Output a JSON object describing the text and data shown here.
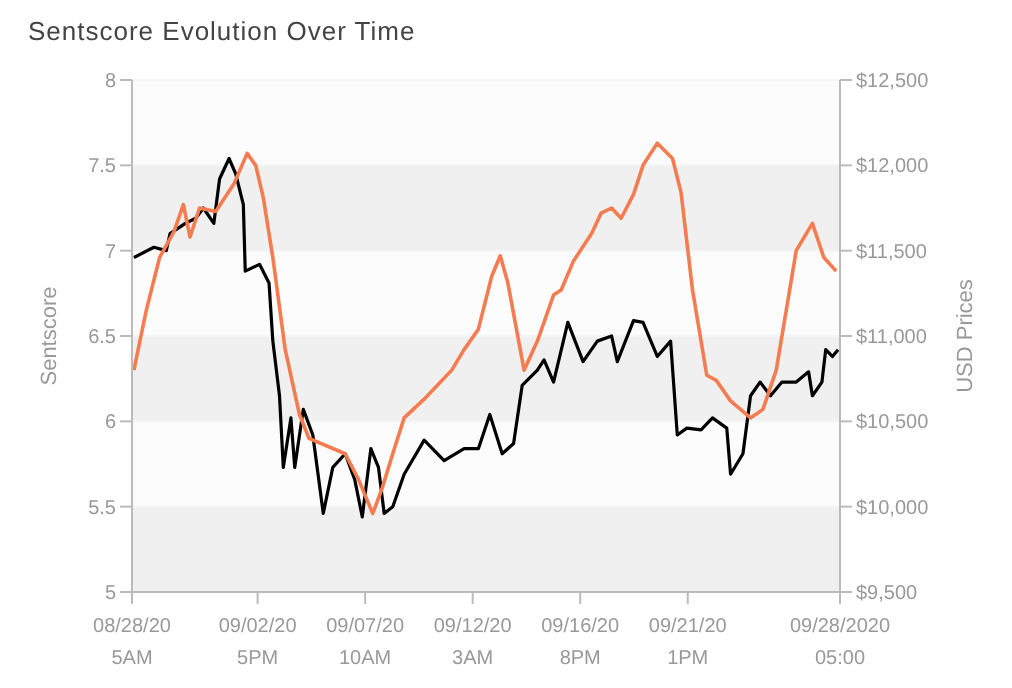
{
  "chart_data": {
    "type": "line",
    "title": "Sentscore Evolution Over Time",
    "ylabel": "Sentscore",
    "y2label": "USD Prices",
    "xlim": [
      "2020-08-28T05:00",
      "2020-09-28T05:00"
    ],
    "xticks": [
      {
        "value": "2020-08-28T05:00",
        "label": "08/28/20\n5AM"
      },
      {
        "value": "2020-09-02T17:00",
        "label": "09/02/20\n5PM"
      },
      {
        "value": "2020-09-07T10:00",
        "label": "09/07/20\n10AM"
      },
      {
        "value": "2020-09-12T03:00",
        "label": "09/12/20\n3AM"
      },
      {
        "value": "2020-09-16T20:00",
        "label": "09/16/20\n8PM"
      },
      {
        "value": "2020-09-21T13:00",
        "label": "09/21/20\n1PM"
      },
      {
        "value": "2020-09-28T05:00",
        "label": "09/28/2020\n05:00"
      }
    ],
    "ylim": [
      5,
      8
    ],
    "yticks": [
      5,
      5.5,
      6,
      6.5,
      7,
      7.5,
      8
    ],
    "y2lim": [
      9500,
      12500
    ],
    "y2ticks": [
      {
        "value": 9500,
        "label": "$9,500"
      },
      {
        "value": 10000,
        "label": "$10,000"
      },
      {
        "value": 10500,
        "label": "$10,500"
      },
      {
        "value": 11000,
        "label": "$11,000"
      },
      {
        "value": 11500,
        "label": "$11,500"
      },
      {
        "value": 12000,
        "label": "$12,000"
      },
      {
        "value": 12500,
        "label": "$12,500"
      }
    ],
    "grid": "y",
    "marker": "none",
    "line_style": "solid",
    "series": [
      {
        "color": "#000000",
        "x": [
          "2020-08-28T07:00",
          "2020-08-29T04:00",
          "2020-08-29T17:00",
          "2020-08-29T21:00",
          "2020-08-30T13:00",
          "2020-08-31T00:00",
          "2020-08-31T08:00",
          "2020-08-31T19:00",
          "2020-09-01T01:00",
          "2020-09-01T11:00",
          "2020-09-01T18:00",
          "2020-09-02T02:00",
          "2020-09-02T04:00",
          "2020-09-02T19:00",
          "2020-09-03T05:00",
          "2020-09-03T09:00",
          "2020-09-03T16:00",
          "2020-09-03T20:00",
          "2020-09-04T04:00",
          "2020-09-04T08:00",
          "2020-09-04T17:00",
          "2020-09-05T03:00",
          "2020-09-05T14:00",
          "2020-09-06T00:00",
          "2020-09-06T13:00",
          "2020-09-06T23:00",
          "2020-09-07T07:00",
          "2020-09-07T16:00",
          "2020-09-08T00:00",
          "2020-09-08T06:00",
          "2020-09-08T15:00",
          "2020-09-09T03:00",
          "2020-09-10T00:00",
          "2020-09-10T21:00",
          "2020-09-11T18:00",
          "2020-09-12T09:00",
          "2020-09-12T21:00",
          "2020-09-13T10:00",
          "2020-09-13T22:00",
          "2020-09-14T07:00",
          "2020-09-14T23:00",
          "2020-09-15T06:00",
          "2020-09-15T16:00",
          "2020-09-16T07:00",
          "2020-09-16T23:00",
          "2020-09-17T14:00",
          "2020-09-18T05:00",
          "2020-09-18T11:00",
          "2020-09-19T04:00",
          "2020-09-19T14:00",
          "2020-09-20T05:00",
          "2020-09-20T19:00",
          "2020-09-21T02:00",
          "2020-09-21T12:00",
          "2020-09-22T03:00",
          "2020-09-22T15:00",
          "2020-09-23T06:00",
          "2020-09-23T10:00",
          "2020-09-23T23:00",
          "2020-09-24T07:00",
          "2020-09-24T17:00",
          "2020-09-25T04:00",
          "2020-09-25T16:00",
          "2020-09-26T07:00",
          "2020-09-26T20:00",
          "2020-09-27T00:00",
          "2020-09-27T10:00",
          "2020-09-27T14:00",
          "2020-09-27T21:00",
          "2020-09-28T03:00"
        ],
        "values": [
          6.96,
          7.02,
          7.0,
          7.1,
          7.16,
          7.19,
          7.25,
          7.16,
          7.42,
          7.54,
          7.45,
          7.27,
          6.88,
          6.92,
          6.81,
          6.47,
          6.15,
          5.73,
          6.02,
          5.73,
          6.07,
          5.92,
          5.46,
          5.73,
          5.81,
          5.66,
          5.44,
          5.84,
          5.73,
          5.46,
          5.5,
          5.69,
          5.89,
          5.77,
          5.84,
          5.84,
          6.04,
          5.81,
          5.87,
          6.21,
          6.3,
          6.36,
          6.23,
          6.58,
          6.35,
          6.47,
          6.5,
          6.35,
          6.59,
          6.58,
          6.38,
          6.47,
          5.92,
          5.96,
          5.95,
          6.02,
          5.96,
          5.69,
          5.81,
          6.15,
          6.23,
          6.15,
          6.23,
          6.23,
          6.29,
          6.15,
          6.23,
          6.42,
          6.38,
          6.42
        ]
      },
      {
        "color": "#f47c50",
        "axis": "y2",
        "x": [
          "2020-08-28T07:00",
          "2020-08-28T20:00",
          "2020-08-29T10:00",
          "2020-08-30T01:00",
          "2020-08-30T11:00",
          "2020-08-30T18:00",
          "2020-08-31T04:00",
          "2020-08-31T21:00",
          "2020-09-01T16:00",
          "2020-09-02T06:00",
          "2020-09-02T15:00",
          "2020-09-02T23:00",
          "2020-09-03T09:00",
          "2020-09-03T22:00",
          "2020-09-04T13:00",
          "2020-09-04T23:00",
          "2020-09-06T13:00",
          "2020-09-07T03:00",
          "2020-09-07T18:00",
          "2020-09-08T04:00",
          "2020-09-08T15:00",
          "2020-09-09T03:00",
          "2020-09-10T00:00",
          "2020-09-11T05:00",
          "2020-09-11T18:00",
          "2020-09-12T09:00",
          "2020-09-12T23:00",
          "2020-09-13T08:00",
          "2020-09-13T16:00",
          "2020-09-14T09:00",
          "2020-09-14T23:00",
          "2020-09-15T16:00",
          "2020-09-16T00:00",
          "2020-09-16T13:00",
          "2020-09-17T08:00",
          "2020-09-17T18:00",
          "2020-09-18T05:00",
          "2020-09-18T15:00",
          "2020-09-19T04:00",
          "2020-09-19T14:00",
          "2020-09-20T05:00",
          "2020-09-20T21:00",
          "2020-09-21T06:00",
          "2020-09-21T18:00",
          "2020-09-22T09:00",
          "2020-09-22T19:00",
          "2020-09-23T10:00",
          "2020-09-24T07:00",
          "2020-09-24T20:00",
          "2020-09-25T10:00",
          "2020-09-26T07:00",
          "2020-09-27T00:00",
          "2020-09-27T12:00",
          "2020-09-28T01:00"
        ],
        "values": [
          10800,
          11150,
          11460,
          11610,
          11770,
          11580,
          11750,
          11730,
          11890,
          12070,
          12000,
          11810,
          11460,
          10920,
          10540,
          10400,
          10310,
          10160,
          9960,
          10110,
          10310,
          10520,
          10630,
          10800,
          10920,
          11040,
          11350,
          11470,
          11310,
          10800,
          10970,
          11240,
          11270,
          11440,
          11600,
          11720,
          11750,
          11690,
          11830,
          12000,
          12130,
          12040,
          11840,
          11270,
          10770,
          10740,
          10620,
          10520,
          10570,
          10800,
          11500,
          11660,
          11460,
          11380
        ]
      }
    ]
  }
}
